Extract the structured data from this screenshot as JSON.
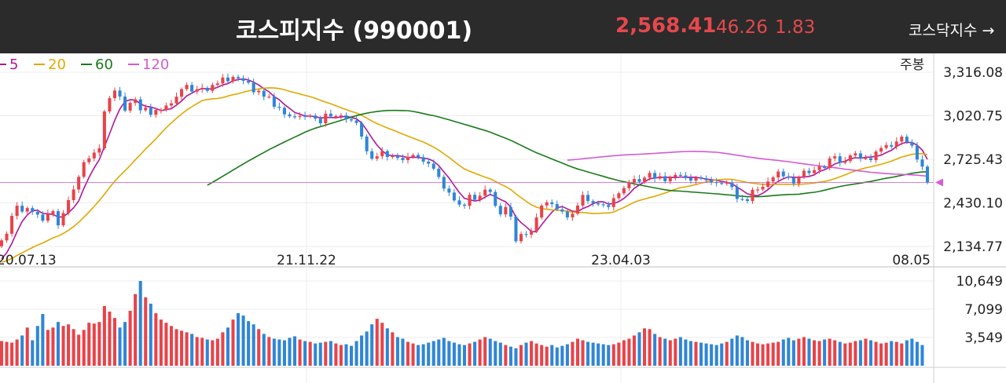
{
  "header": {
    "title": "코스피지수 (990001)",
    "price": "2,568.41",
    "change": "46.26",
    "change_pct": "1.83",
    "kosdaq_link": "코스닥지수 →"
  },
  "period_label": "주봉",
  "chart_data": {
    "type": "candlestick",
    "price_axis": {
      "ticks": [
        "3,316.08",
        "3,020.75",
        "2,725.43",
        "2,430.10",
        "2,134.77"
      ],
      "values": [
        3316.08,
        3020.75,
        2725.43,
        2430.1,
        2134.77
      ]
    },
    "volume_axis": {
      "ticks": [
        "10,649",
        "7,099",
        "3,549"
      ],
      "values": [
        10649,
        7099,
        3549
      ]
    },
    "date_labels": [
      "20.07.13",
      "21.11.22",
      "23.04.03",
      "08.05"
    ],
    "legend": [
      {
        "label": "5",
        "color": "#b0179a"
      },
      {
        "label": "20",
        "color": "#e0a800"
      },
      {
        "label": "60",
        "color": "#1a7a1a"
      },
      {
        "label": "120",
        "color": "#d25cd2"
      }
    ],
    "up_color": "#e8434a",
    "down_color": "#2f86d6",
    "last_close": 2568.41,
    "grid": true,
    "close_series": [
      2176,
      2221,
      2342,
      2411,
      2371,
      2395,
      2369,
      2351,
      2309,
      2356,
      2374,
      2278,
      2361,
      2449,
      2521,
      2607,
      2706,
      2732,
      2771,
      2800,
      3050,
      3140,
      3192,
      3151,
      3056,
      3108,
      3132,
      3058,
      3075,
      3027,
      3060,
      3060,
      3090,
      3105,
      3150,
      3201,
      3230,
      3185,
      3200,
      3210,
      3190,
      3230,
      3240,
      3280,
      3255,
      3284,
      3275,
      3258,
      3245,
      3180,
      3190,
      3150,
      3150,
      3082,
      3075,
      3030,
      3017,
      3014,
      3020,
      3017,
      3022,
      3001,
      2970,
      3035,
      3016,
      3018,
      3023,
      2997,
      2989,
      2972,
      2880,
      2780,
      2730,
      2746,
      2781,
      2741,
      2748,
      2735,
      2720,
      2742,
      2755,
      2740,
      2710,
      2696,
      2662,
      2606,
      2527,
      2500,
      2447,
      2418,
      2410,
      2485,
      2451,
      2479,
      2520,
      2504,
      2410,
      2352,
      2402,
      2337,
      2170,
      2219,
      2215,
      2237,
      2331,
      2412,
      2434,
      2422,
      2386,
      2371,
      2332,
      2357,
      2412,
      2484,
      2443,
      2428,
      2420,
      2415,
      2402,
      2462,
      2495,
      2530,
      2567,
      2592,
      2573,
      2601,
      2633,
      2595,
      2611,
      2577,
      2605,
      2620,
      2616,
      2599,
      2581,
      2601,
      2596,
      2583,
      2571,
      2565,
      2562,
      2566,
      2537,
      2457,
      2455,
      2443,
      2519,
      2521,
      2539,
      2575,
      2603,
      2643,
      2610,
      2601,
      2562,
      2605,
      2648,
      2632,
      2652,
      2677,
      2667,
      2732,
      2746,
      2702,
      2714,
      2752,
      2766,
      2732,
      2733,
      2720,
      2778,
      2802,
      2822,
      2812,
      2846,
      2879,
      2842,
      2818,
      2724,
      2676,
      2568
    ],
    "volume_series": [
      3100,
      3000,
      2900,
      3300,
      3800,
      4800,
      3200,
      5000,
      6500,
      4500,
      4800,
      5500,
      5000,
      5200,
      4600,
      3900,
      4500,
      5400,
      5300,
      5500,
      7500,
      6800,
      6000,
      4800,
      5500,
      6900,
      9000,
      10649,
      8600,
      7800,
      6600,
      5800,
      5400,
      5000,
      4600,
      4400,
      4200,
      4000,
      3600,
      3500,
      3300,
      3200,
      3400,
      4200,
      4800,
      5800,
      6600,
      6300,
      5600,
      5200,
      4600,
      4000,
      3600,
      3400,
      3300,
      3200,
      3500,
      3700,
      3300,
      3100,
      3000,
      2800,
      2900,
      3000,
      3100,
      2800,
      2600,
      2700,
      2500,
      3100,
      3800,
      4300,
      5200,
      5900,
      5400,
      4700,
      4200,
      3600,
      3400,
      3000,
      2800,
      2600,
      2700,
      2900,
      3100,
      3300,
      3500,
      3100,
      2900,
      2700,
      2600,
      2800,
      3000,
      3300,
      3600,
      3400,
      3100,
      2900,
      2600,
      2400,
      2200,
      2600,
      2900,
      3100,
      2800,
      2600,
      2400,
      2600,
      2300,
      2500,
      2700,
      3000,
      3400,
      3200,
      3000,
      2900,
      2800,
      2700,
      2600,
      2700,
      2900,
      3200,
      3400,
      3800,
      4200,
      4700,
      4600,
      4000,
      3600,
      3400,
      3200,
      3400,
      3600,
      3300,
      3100,
      3000,
      2900,
      2800,
      2700,
      2600,
      2800,
      3000,
      3400,
      3800,
      3600,
      3200,
      3000,
      2800,
      2700,
      2800,
      2900,
      3000,
      3300,
      3500,
      3200,
      3400,
      3600,
      3400,
      3200,
      3100,
      3300,
      3400,
      3200,
      3000,
      2800,
      2900,
      3100,
      3200,
      3400,
      3200,
      3000,
      2800,
      2900,
      3100,
      3000,
      2800,
      3200,
      3400,
      3000,
      2600
    ]
  }
}
